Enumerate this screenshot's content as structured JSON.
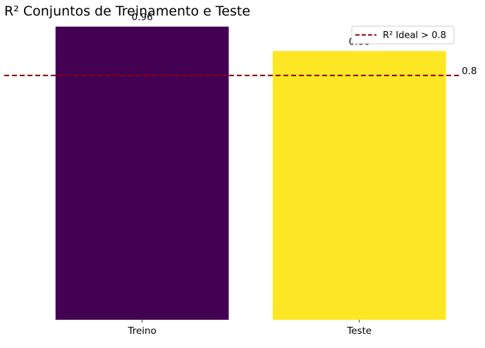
{
  "chart_data": {
    "type": "bar",
    "title": "R² Conjuntos de Treinamento e Teste",
    "xlabel": "",
    "ylabel": "",
    "categories": [
      "Treino",
      "Teste"
    ],
    "values": [
      0.96,
      0.88
    ],
    "data_labels": [
      "0.96",
      "0.88"
    ],
    "bar_colors": [
      "#440154",
      "#fde725"
    ],
    "ylim": [
      0,
      1.0
    ],
    "grid": false,
    "y_axis_visible": false,
    "reference_line": {
      "value": 0.8,
      "label": "0.8",
      "color": "#8b0000",
      "style": "dashed",
      "legend_label": "R² Ideal > 0.8"
    },
    "legend_position": "top-right"
  }
}
